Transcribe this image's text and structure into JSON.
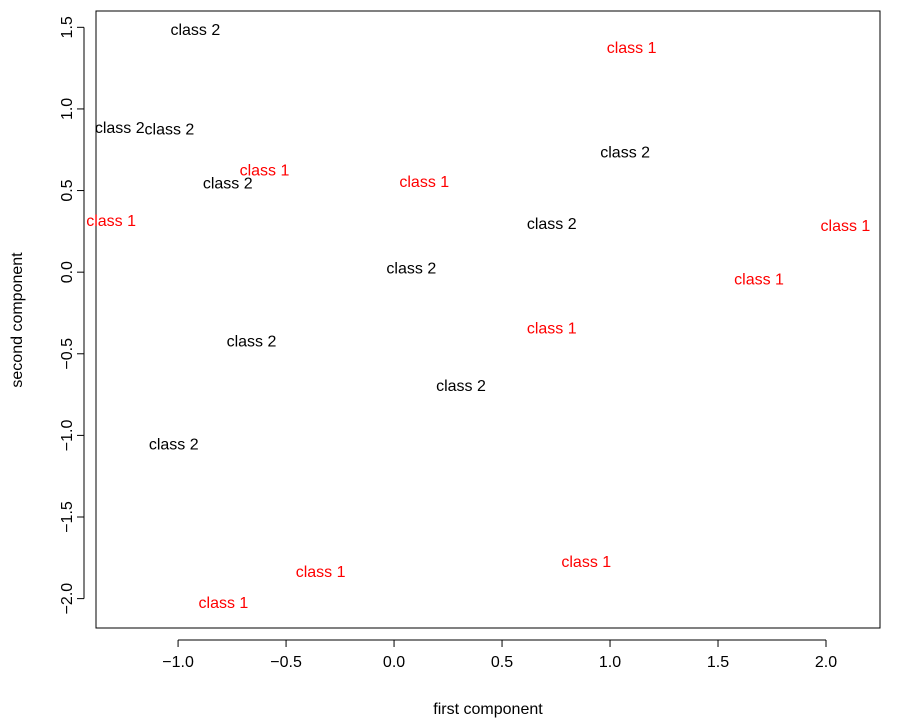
{
  "chart_data": {
    "type": "scatter",
    "xlabel": "first component",
    "ylabel": "second component",
    "xlim": [
      -1.38,
      2.25
    ],
    "ylim": [
      -2.18,
      1.6
    ],
    "xticks": [
      -1.0,
      -0.5,
      0.0,
      0.5,
      1.0,
      1.5,
      2.0
    ],
    "yticks": [
      -2.0,
      -1.5,
      -1.0,
      -0.5,
      0.0,
      0.5,
      1.0,
      1.5
    ],
    "xtick_labels": [
      "−1.0",
      "−0.5",
      "0.0",
      "0.5",
      "1.0",
      "1.5",
      "2.0"
    ],
    "ytick_labels": [
      "−2.0",
      "−1.5",
      "−1.0",
      "−0.5",
      "0.0",
      "0.5",
      "1.0",
      "1.5"
    ],
    "grid": false,
    "marker": "text",
    "colors": {
      "class 1": "#ff0000",
      "class 2": "#000000"
    },
    "points": [
      {
        "x": -0.92,
        "y": 1.49,
        "label": "class 2"
      },
      {
        "x": 1.1,
        "y": 1.38,
        "label": "class 1"
      },
      {
        "x": -1.27,
        "y": 0.89,
        "label": "class 2"
      },
      {
        "x": -1.04,
        "y": 0.88,
        "label": "class 2"
      },
      {
        "x": 1.07,
        "y": 0.74,
        "label": "class 2"
      },
      {
        "x": -0.6,
        "y": 0.63,
        "label": "class 1"
      },
      {
        "x": -0.77,
        "y": 0.55,
        "label": "class 2"
      },
      {
        "x": 0.14,
        "y": 0.56,
        "label": "class 1"
      },
      {
        "x": -1.31,
        "y": 0.32,
        "label": "class 1"
      },
      {
        "x": 0.73,
        "y": 0.3,
        "label": "class 2"
      },
      {
        "x": 2.09,
        "y": 0.29,
        "label": "class 1"
      },
      {
        "x": 0.08,
        "y": 0.03,
        "label": "class 2"
      },
      {
        "x": 1.69,
        "y": -0.04,
        "label": "class 1"
      },
      {
        "x": 0.73,
        "y": -0.34,
        "label": "class 1"
      },
      {
        "x": -0.66,
        "y": -0.42,
        "label": "class 2"
      },
      {
        "x": 0.31,
        "y": -0.69,
        "label": "class 2"
      },
      {
        "x": -1.02,
        "y": -1.05,
        "label": "class 2"
      },
      {
        "x": 0.89,
        "y": -1.77,
        "label": "class 1"
      },
      {
        "x": -0.34,
        "y": -1.83,
        "label": "class 1"
      },
      {
        "x": -0.79,
        "y": -2.02,
        "label": "class 1"
      }
    ]
  }
}
